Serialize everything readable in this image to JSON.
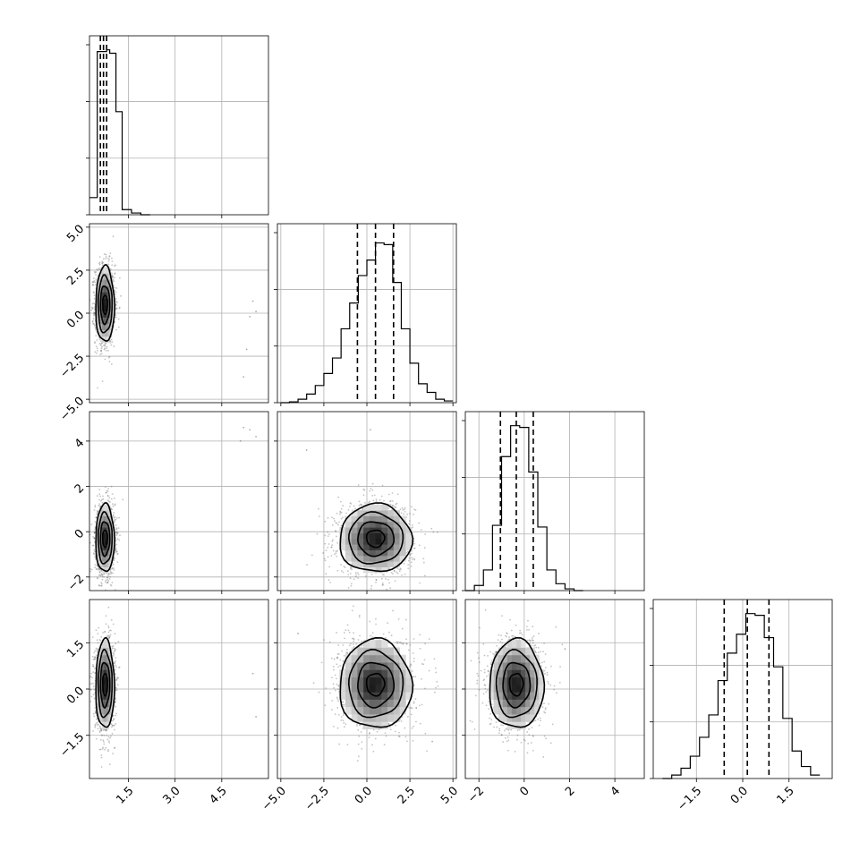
{
  "chart_data": {
    "type": "corner",
    "parameters": [
      {
        "axis_range": [
          0.25,
          6.0
        ],
        "x_tick_labels": [
          {
            "value": 1.5,
            "label": "1.5"
          },
          {
            "value": 3.0,
            "label": "3.0"
          },
          {
            "value": 4.5,
            "label": "4.5"
          }
        ],
        "y_tick_labels": [],
        "quantiles": [
          0.6,
          0.7,
          0.8
        ],
        "histogram": {
          "bin_edges": [
            0.2,
            0.5,
            0.8,
            0.9,
            1.1,
            1.3,
            1.6,
            1.9,
            2.2
          ],
          "counts": [
            0.1,
            0.95,
            0.96,
            0.94,
            0.6,
            0.03,
            0.01,
            0.0
          ]
        }
      },
      {
        "axis_range": [
          -5.2,
          5.2
        ],
        "x_tick_labels": [
          {
            "value": -5.0,
            "label": "−5.0"
          },
          {
            "value": -2.5,
            "label": "−2.5"
          },
          {
            "value": 0.0,
            "label": "0.0"
          },
          {
            "value": 2.5,
            "label": "2.5"
          },
          {
            "value": 5.0,
            "label": "5.0"
          }
        ],
        "y_tick_labels": [
          {
            "value": 5.0,
            "label": "5.0"
          },
          {
            "value": 2.5,
            "label": "2.5"
          },
          {
            "value": 0.0,
            "label": "0.0"
          },
          {
            "value": -2.5,
            "label": "−2.5"
          },
          {
            "value": -5.0,
            "label": "−5.0"
          }
        ],
        "quantiles": [
          -0.55,
          0.5,
          1.55
        ],
        "histogram": {
          "bin_edges": [
            -5.0,
            -4.5,
            -4.0,
            -3.5,
            -3.0,
            -2.5,
            -2.0,
            -1.5,
            -1.0,
            -0.5,
            0.0,
            0.5,
            1.0,
            1.5,
            2.0,
            2.5,
            3.0,
            3.5,
            4.0,
            4.5,
            5.0
          ],
          "counts": [
            0.0,
            0.005,
            0.02,
            0.05,
            0.1,
            0.17,
            0.26,
            0.43,
            0.58,
            0.74,
            0.83,
            0.93,
            0.92,
            0.7,
            0.43,
            0.23,
            0.11,
            0.06,
            0.02,
            0.01
          ]
        }
      },
      {
        "axis_range": [
          -2.6,
          5.3
        ],
        "x_tick_labels": [
          {
            "value": -2,
            "label": "−2"
          },
          {
            "value": 0,
            "label": "0"
          },
          {
            "value": 2,
            "label": "2"
          },
          {
            "value": 4,
            "label": "4"
          }
        ],
        "y_tick_labels": [
          {
            "value": 4,
            "label": "4"
          },
          {
            "value": 2,
            "label": "2"
          },
          {
            "value": 0,
            "label": "0"
          },
          {
            "value": -2,
            "label": "−2"
          }
        ],
        "quantiles": [
          -1.05,
          -0.35,
          0.4
        ],
        "histogram": {
          "bin_edges": [
            -2.6,
            -2.2,
            -1.8,
            -1.4,
            -1.0,
            -0.6,
            -0.2,
            0.2,
            0.6,
            1.0,
            1.4,
            1.8,
            2.2,
            2.6
          ],
          "counts": [
            0.0,
            0.03,
            0.12,
            0.38,
            0.78,
            0.96,
            0.95,
            0.69,
            0.37,
            0.12,
            0.04,
            0.01,
            0.0
          ]
        }
      },
      {
        "axis_range": [
          -2.9,
          2.9
        ],
        "x_tick_labels": [
          {
            "value": -1.5,
            "label": "−1.5"
          },
          {
            "value": 0.0,
            "label": "0.0"
          },
          {
            "value": 1.5,
            "label": "1.5"
          }
        ],
        "y_tick_labels": [
          {
            "value": 1.5,
            "label": "1.5"
          },
          {
            "value": 0.0,
            "label": "0.0"
          },
          {
            "value": -1.5,
            "label": "−1.5"
          }
        ],
        "quantiles": [
          -0.6,
          0.15,
          0.85
        ],
        "histogram": {
          "bin_edges": [
            -2.6,
            -2.3,
            -2.0,
            -1.7,
            -1.4,
            -1.1,
            -0.8,
            -0.5,
            -0.2,
            0.1,
            0.4,
            0.7,
            1.0,
            1.3,
            1.6,
            1.9,
            2.2,
            2.5
          ],
          "counts": [
            0.0,
            0.02,
            0.06,
            0.13,
            0.24,
            0.37,
            0.57,
            0.73,
            0.84,
            0.96,
            0.95,
            0.82,
            0.65,
            0.35,
            0.16,
            0.07,
            0.02
          ]
        }
      }
    ],
    "pairs": [
      {
        "row": 1,
        "col": 0,
        "center": [
          0.75,
          0.5
        ],
        "sigma": [
          0.15,
          1.1
        ],
        "rho": 0.0,
        "outliers": [
          [
            5.5,
            0.7
          ],
          [
            5.4,
            -0.2
          ],
          [
            5.6,
            0.1
          ],
          [
            5.3,
            -2.1
          ],
          [
            5.2,
            -3.7
          ]
        ]
      },
      {
        "row": 2,
        "col": 0,
        "center": [
          0.75,
          -0.3
        ],
        "sigma": [
          0.15,
          0.75
        ],
        "rho": 0.0,
        "outliers": [
          [
            5.2,
            4.6
          ],
          [
            5.4,
            4.5
          ],
          [
            5.1,
            4.0
          ],
          [
            5.6,
            4.2
          ]
        ]
      },
      {
        "row": 2,
        "col": 1,
        "center": [
          0.5,
          -0.3
        ],
        "sigma": [
          1.05,
          0.75
        ],
        "rho": 0.0,
        "outliers": [
          [
            -3.5,
            3.6
          ],
          [
            0.2,
            4.5
          ]
        ]
      },
      {
        "row": 3,
        "col": 0,
        "center": [
          0.75,
          0.15
        ],
        "sigma": [
          0.15,
          0.72
        ],
        "rho": 0.0,
        "outliers": [
          [
            5.5,
            0.5
          ],
          [
            5.6,
            -0.9
          ]
        ]
      },
      {
        "row": 3,
        "col": 1,
        "center": [
          0.5,
          0.15
        ],
        "sigma": [
          1.05,
          0.72
        ],
        "rho": 0.0,
        "outliers": [
          [
            -4.0,
            1.8
          ],
          [
            3.8,
            -1.7
          ]
        ]
      },
      {
        "row": 3,
        "col": 2,
        "center": [
          -0.35,
          0.15
        ],
        "sigma": [
          0.6,
          0.72
        ],
        "rho": 0.0,
        "outliers": [
          [
            1.8,
            1.3
          ]
        ]
      }
    ],
    "grid": true
  }
}
